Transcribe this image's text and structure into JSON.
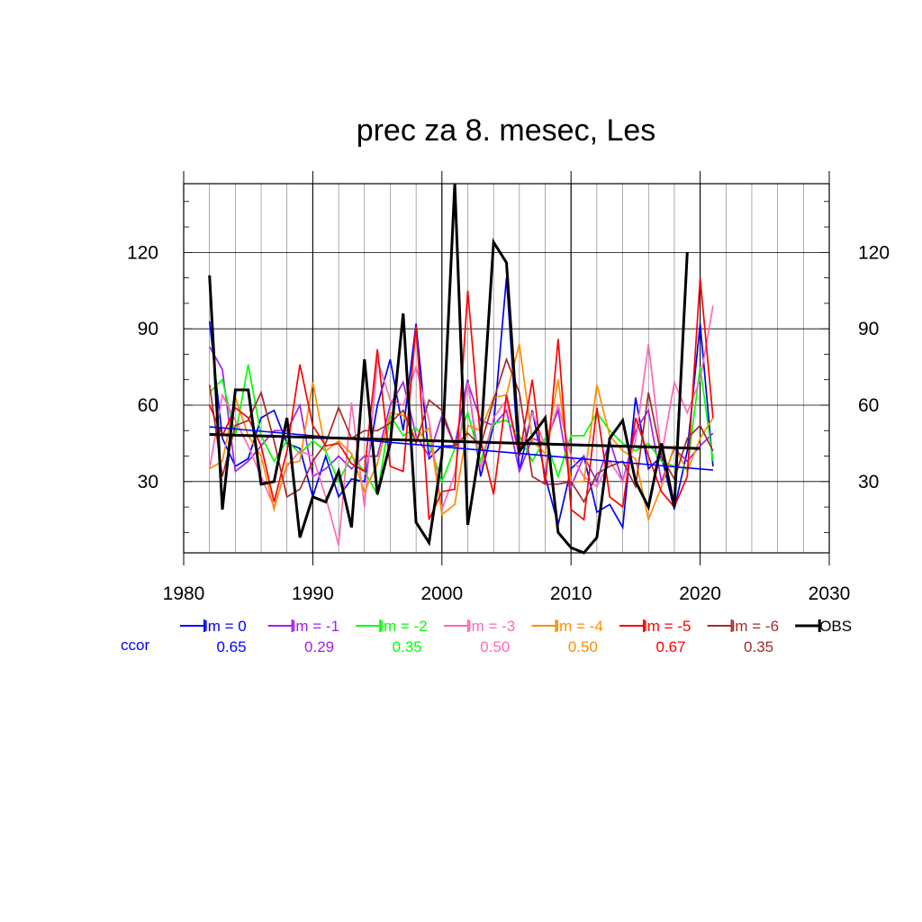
{
  "chart_data": {
    "type": "line",
    "title": "prec za 8. mesec, Les",
    "xlabel": "",
    "ylabel": "",
    "xlim": [
      1980,
      2030
    ],
    "ylim": [
      2,
      147
    ],
    "x_ticks": [
      1980,
      1990,
      2000,
      2010,
      2020,
      2030
    ],
    "y_ticks": [
      30,
      60,
      90,
      120
    ],
    "grid": true,
    "legend_position": "bottom",
    "ccor_label": "ccor",
    "x": [
      1982,
      1983,
      1984,
      1985,
      1986,
      1987,
      1988,
      1989,
      1990,
      1991,
      1992,
      1993,
      1994,
      1995,
      1996,
      1997,
      1998,
      1999,
      2000,
      2001,
      2002,
      2003,
      2004,
      2005,
      2006,
      2007,
      2008,
      2009,
      2010,
      2011,
      2012,
      2013,
      2014,
      2015,
      2016,
      2017,
      2018,
      2019,
      2020,
      2021
    ],
    "series": [
      {
        "name": "lm = 0",
        "ccor": "0.65",
        "color": "#0000ff",
        "values": [
          93,
          47,
          36,
          39,
          55,
          58,
          45,
          43,
          24,
          40,
          24,
          31,
          30,
          60,
          78,
          50,
          92,
          39,
          44,
          44,
          70,
          32,
          52,
          110,
          34,
          58,
          32,
          13,
          35,
          40,
          18,
          21,
          12,
          63,
          35,
          40,
          19,
          42,
          92,
          36
        ]
      },
      {
        "name": "lm = -1",
        "ccor": "0.29",
        "color": "#a020f0",
        "values": [
          83,
          74,
          34,
          38,
          44,
          50,
          50,
          60,
          32,
          35,
          40,
          35,
          40,
          40,
          60,
          69,
          48,
          40,
          56,
          44,
          69,
          54,
          52,
          58,
          34,
          47,
          45,
          58,
          28,
          40,
          30,
          46,
          30,
          50,
          58,
          30,
          43,
          38,
          44,
          49
        ]
      },
      {
        "name": "lm = -2",
        "ccor": "0.35",
        "color": "#00ff00",
        "values": [
          65,
          70,
          48,
          76,
          48,
          38,
          46,
          41,
          46,
          42,
          30,
          40,
          34,
          25,
          56,
          48,
          51,
          45,
          30,
          43,
          57,
          38,
          53,
          54,
          48,
          38,
          47,
          32,
          48,
          48,
          57,
          50,
          45,
          42,
          45,
          38,
          36,
          35,
          75,
          38
        ]
      },
      {
        "name": "lm = -3",
        "ccor": "0.50",
        "color": "#ff69b4",
        "values": [
          35,
          64,
          54,
          44,
          32,
          20,
          36,
          42,
          40,
          24,
          5,
          61,
          20,
          78,
          62,
          60,
          75,
          54,
          19,
          33,
          69,
          35,
          55,
          62,
          40,
          57,
          44,
          60,
          40,
          32,
          28,
          38,
          30,
          46,
          84,
          40,
          69,
          57,
          70,
          99
        ]
      },
      {
        "name": "lm = -4",
        "ccor": "0.50",
        "color": "#ff8c00",
        "values": [
          35,
          38,
          63,
          48,
          40,
          19,
          37,
          38,
          69,
          42,
          46,
          41,
          26,
          37,
          57,
          56,
          47,
          51,
          17,
          21,
          52,
          50,
          63,
          64,
          84,
          46,
          41,
          70,
          30,
          30,
          68,
          48,
          42,
          39,
          15,
          28,
          44,
          34,
          47,
          55
        ]
      },
      {
        "name": "lm = -5",
        "ccor": "0.67",
        "color": "#ff0000",
        "values": [
          60,
          48,
          59,
          55,
          44,
          22,
          42,
          76,
          52,
          44,
          45,
          37,
          34,
          82,
          36,
          34,
          91,
          15,
          26,
          27,
          105,
          46,
          25,
          64,
          40,
          70,
          29,
          86,
          19,
          15,
          59,
          24,
          20,
          55,
          40,
          26,
          20,
          32,
          110,
          55
        ]
      },
      {
        "name": "lm = -6",
        "ccor": "0.35",
        "color": "#a52a2a",
        "values": [
          68,
          32,
          52,
          54,
          65,
          46,
          24,
          27,
          38,
          45,
          59,
          47,
          50,
          50,
          53,
          58,
          45,
          62,
          58,
          44,
          49,
          44,
          62,
          78,
          65,
          32,
          29,
          29,
          30,
          22,
          33,
          36,
          38,
          28,
          65,
          40,
          31,
          47,
          52,
          42
        ]
      },
      {
        "name": "OBS",
        "ccor": "",
        "color": "#000000",
        "values": [
          111,
          19,
          66,
          66,
          29,
          30,
          55,
          8,
          24,
          22,
          34,
          12,
          78,
          25,
          45,
          96,
          14,
          6,
          40,
          147,
          13,
          45,
          124,
          116,
          42,
          48,
          55,
          10,
          4,
          2,
          8,
          47,
          54,
          30,
          20,
          45,
          20,
          120,
          null,
          null
        ]
      }
    ],
    "trends": [
      {
        "name": "lm = 0",
        "x": [
          1982,
          2021
        ],
        "y": [
          51.5,
          34.5
        ]
      },
      {
        "name": "OBS",
        "x": [
          1982,
          2020
        ],
        "y": [
          48.5,
          43
        ]
      }
    ]
  }
}
